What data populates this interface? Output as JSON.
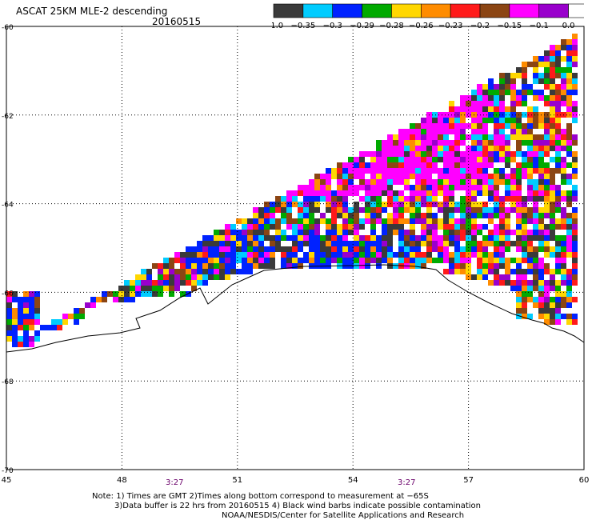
{
  "header": {
    "title": "ASCAT 25KM MLE-2 descending",
    "date": "20160515"
  },
  "legend": {
    "labels": [
      "−1.0",
      "−0.35",
      "−0.3",
      "−0.29",
      "−0.28",
      "−0.26",
      "−0.23",
      "−0.2",
      "−0.15",
      "−0.1",
      "0.0"
    ],
    "colors": [
      "#3a3a3a",
      "#00ccff",
      "#0022ff",
      "#00aa00",
      "#ffd700",
      "#ff8c00",
      "#ff1a1a",
      "#8b4513",
      "#ff00ff",
      "#9900cc",
      "#ffffff"
    ]
  },
  "axes": {
    "lat_labels": [
      "-60",
      "-62",
      "-64",
      "-66",
      "-68",
      "-70"
    ],
    "lon_labels": [
      "45",
      "48",
      "51",
      "54",
      "57",
      "60"
    ],
    "time_labels": [
      "3:27",
      "3:27"
    ]
  },
  "notes": {
    "line1": "Note: 1) Times are GMT 2)Times along bottom correspond to measurement at −65S",
    "line2": "3)Data buffer is 22 hrs from 20160515 4) Black wind barbs indicate possible contamination",
    "line3": "NOAA/NESDIS/Center for Satellite Applications and Research"
  }
}
